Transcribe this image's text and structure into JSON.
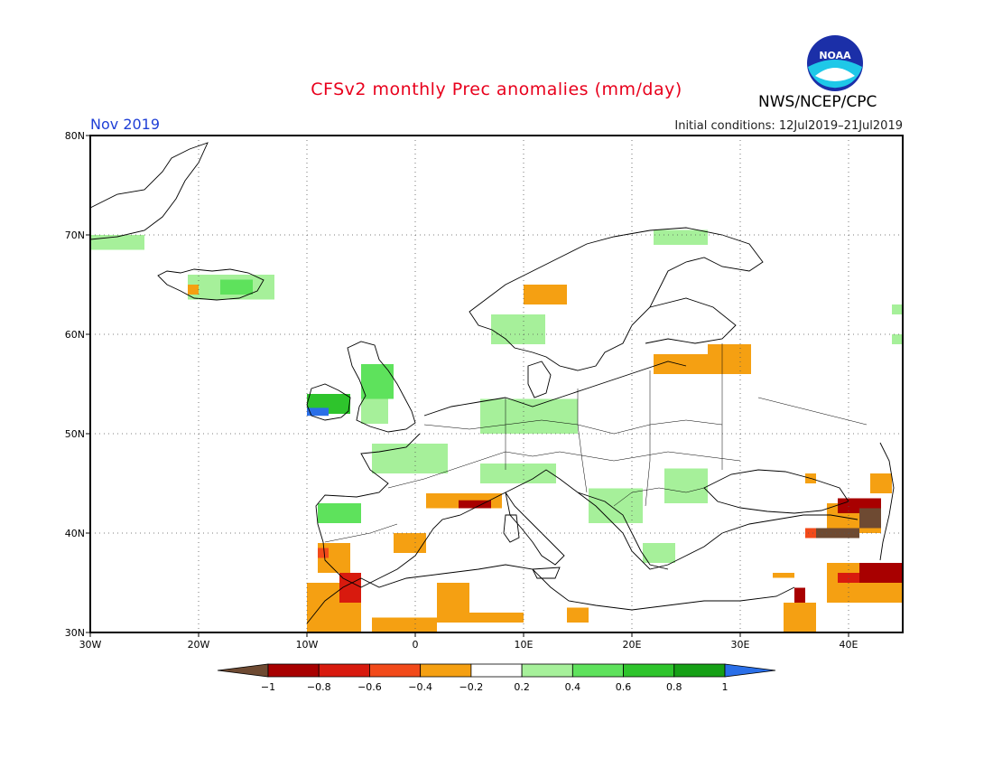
{
  "title": "CFSv2 monthly Prec anomalies (mm/day)",
  "month": "Nov 2019",
  "initial_conditions": "Initial conditions: 12Jul2019–21Jul2019",
  "agency": "NWS/NCEP/CPC",
  "logo_text": "NOAA",
  "map": {
    "lon_range": [
      -30,
      45
    ],
    "lat_range": [
      30,
      80
    ],
    "lon_ticks": [
      {
        "v": -30,
        "label": "30W"
      },
      {
        "v": -20,
        "label": "20W"
      },
      {
        "v": -10,
        "label": "10W"
      },
      {
        "v": 0,
        "label": "0"
      },
      {
        "v": 10,
        "label": "10E"
      },
      {
        "v": 20,
        "label": "20E"
      },
      {
        "v": 30,
        "label": "30E"
      },
      {
        "v": 40,
        "label": "40E"
      }
    ],
    "lat_ticks": [
      {
        "v": 80,
        "label": "80N"
      },
      {
        "v": 70,
        "label": "70N"
      },
      {
        "v": 60,
        "label": "60N"
      },
      {
        "v": 50,
        "label": "50N"
      },
      {
        "v": 40,
        "label": "40N"
      },
      {
        "v": 30,
        "label": "30N"
      }
    ],
    "grid": "dotted"
  },
  "colorbar": {
    "labels": [
      "−1",
      "−0.8",
      "−0.6",
      "−0.4",
      "−0.2",
      "0.2",
      "0.4",
      "0.6",
      "0.8",
      "1"
    ],
    "colors": [
      "#6e4a32",
      "#a80000",
      "#d81a0e",
      "#f24a1a",
      "#f5a012",
      "#ffffff",
      "#a6f09a",
      "#5ee25c",
      "#2ec42c",
      "#16a016",
      "#2a6fe8"
    ]
  },
  "anomaly_regions": [
    {
      "color": "#a6f09a",
      "lon": [
        -30,
        -25
      ],
      "lat": [
        68.5,
        70
      ]
    },
    {
      "color": "#a6f09a",
      "lon": [
        -21,
        -13
      ],
      "lat": [
        63.5,
        66
      ]
    },
    {
      "color": "#5ee25c",
      "lon": [
        -18,
        -15
      ],
      "lat": [
        64,
        65.5
      ]
    },
    {
      "color": "#f5a012",
      "lon": [
        -21,
        -20
      ],
      "lat": [
        64,
        65
      ]
    },
    {
      "color": "#5ee25c",
      "lon": [
        -5,
        -2
      ],
      "lat": [
        53.5,
        57
      ]
    },
    {
      "color": "#a6f09a",
      "lon": [
        -5,
        -2.5
      ],
      "lat": [
        51,
        53.5
      ]
    },
    {
      "color": "#2ec42c",
      "lon": [
        -10,
        -6
      ],
      "lat": [
        52,
        54
      ]
    },
    {
      "color": "#2a6fe8",
      "lon": [
        -10,
        -8
      ],
      "lat": [
        51.8,
        52.6
      ]
    },
    {
      "color": "#a6f09a",
      "lon": [
        6,
        15
      ],
      "lat": [
        50,
        53.5
      ]
    },
    {
      "color": "#a6f09a",
      "lon": [
        -4,
        3
      ],
      "lat": [
        46,
        49
      ]
    },
    {
      "color": "#a6f09a",
      "lon": [
        6,
        13
      ],
      "lat": [
        45,
        47
      ]
    },
    {
      "color": "#f5a012",
      "lon": [
        1,
        8
      ],
      "lat": [
        42.5,
        44
      ]
    },
    {
      "color": "#a80000",
      "lon": [
        4,
        7
      ],
      "lat": [
        42.5,
        43.3
      ]
    },
    {
      "color": "#5ee25c",
      "lon": [
        -9,
        -5
      ],
      "lat": [
        41,
        43
      ]
    },
    {
      "color": "#f5a012",
      "lon": [
        -9,
        -6
      ],
      "lat": [
        36,
        39
      ]
    },
    {
      "color": "#f24a1a",
      "lon": [
        -9,
        -8
      ],
      "lat": [
        37.5,
        38.5
      ]
    },
    {
      "color": "#f5a012",
      "lon": [
        -2,
        1
      ],
      "lat": [
        38,
        40
      ]
    },
    {
      "color": "#f5a012",
      "lon": [
        -10,
        -5
      ],
      "lat": [
        30,
        35
      ]
    },
    {
      "color": "#d81a0e",
      "lon": [
        -7,
        -5
      ],
      "lat": [
        33,
        36
      ]
    },
    {
      "color": "#f5a012",
      "lon": [
        -4,
        2
      ],
      "lat": [
        30,
        31.5
      ]
    },
    {
      "color": "#f5a012",
      "lon": [
        2,
        5
      ],
      "lat": [
        31,
        35
      ]
    },
    {
      "color": "#f5a012",
      "lon": [
        5,
        10
      ],
      "lat": [
        31,
        32
      ]
    },
    {
      "color": "#a6f09a",
      "lon": [
        16,
        21
      ],
      "lat": [
        41,
        44.5
      ]
    },
    {
      "color": "#5ee25c",
      "lon": [
        23,
        27
      ],
      "lat": [
        44,
        46
      ]
    },
    {
      "color": "#a6f09a",
      "lon": [
        23,
        27
      ],
      "lat": [
        43,
        46.5
      ]
    },
    {
      "color": "#a6f09a",
      "lon": [
        21,
        24
      ],
      "lat": [
        37,
        39
      ]
    },
    {
      "color": "#f5a012",
      "lon": [
        22,
        31
      ],
      "lat": [
        56,
        58
      ]
    },
    {
      "color": "#f5a012",
      "lon": [
        27,
        31
      ],
      "lat": [
        58,
        59
      ]
    },
    {
      "color": "#a6f09a",
      "lon": [
        7,
        12
      ],
      "lat": [
        59,
        62
      ]
    },
    {
      "color": "#f5a012",
      "lon": [
        10,
        14
      ],
      "lat": [
        63,
        65
      ]
    },
    {
      "color": "#a6f09a",
      "lon": [
        22,
        27
      ],
      "lat": [
        69,
        70.5
      ]
    },
    {
      "color": "#f5a012",
      "lon": [
        36,
        37
      ],
      "lat": [
        45,
        46
      ]
    },
    {
      "color": "#f5a012",
      "lon": [
        42,
        44
      ],
      "lat": [
        44,
        46
      ]
    },
    {
      "color": "#f5a012",
      "lon": [
        38,
        43
      ],
      "lat": [
        40,
        43
      ]
    },
    {
      "color": "#a80000",
      "lon": [
        39,
        43
      ],
      "lat": [
        42,
        43.5
      ]
    },
    {
      "color": "#6e4a32",
      "lon": [
        41,
        43
      ],
      "lat": [
        40.5,
        42.5
      ]
    },
    {
      "color": "#6e4a32",
      "lon": [
        37,
        41
      ],
      "lat": [
        39.5,
        40.5
      ]
    },
    {
      "color": "#f24a1a",
      "lon": [
        36,
        37
      ],
      "lat": [
        39.5,
        40.5
      ]
    },
    {
      "color": "#f5a012",
      "lon": [
        38,
        45
      ],
      "lat": [
        33,
        37
      ]
    },
    {
      "color": "#a80000",
      "lon": [
        41,
        45
      ],
      "lat": [
        35,
        37
      ]
    },
    {
      "color": "#d81a0e",
      "lon": [
        39,
        41
      ],
      "lat": [
        35,
        36
      ]
    },
    {
      "color": "#a80000",
      "lon": [
        35,
        36
      ],
      "lat": [
        33,
        34.5
      ]
    },
    {
      "color": "#f5a012",
      "lon": [
        34,
        37
      ],
      "lat": [
        30,
        33
      ]
    },
    {
      "color": "#f5a012",
      "lon": [
        14,
        16
      ],
      "lat": [
        31,
        32.5
      ]
    },
    {
      "color": "#f5a012",
      "lon": [
        33,
        35
      ],
      "lat": [
        35.5,
        36
      ]
    },
    {
      "color": "#a6f09a",
      "lon": [
        44,
        45
      ],
      "lat": [
        62,
        63
      ]
    },
    {
      "color": "#a6f09a",
      "lon": [
        44,
        45
      ],
      "lat": [
        59,
        60
      ]
    }
  ]
}
